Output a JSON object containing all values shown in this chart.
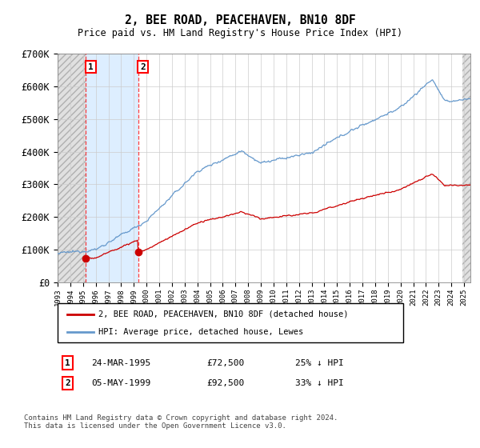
{
  "title": "2, BEE ROAD, PEACEHAVEN, BN10 8DF",
  "subtitle": "Price paid vs. HM Land Registry's House Price Index (HPI)",
  "ylim": [
    0,
    700000
  ],
  "yticks": [
    0,
    100000,
    200000,
    300000,
    400000,
    500000,
    600000,
    700000
  ],
  "ytick_labels": [
    "£0",
    "£100K",
    "£200K",
    "£300K",
    "£400K",
    "£500K",
    "£600K",
    "£700K"
  ],
  "sale1": {
    "date_x": 1995.23,
    "price": 72500,
    "label": "1",
    "date_str": "24-MAR-1995",
    "pct": "25% ↓ HPI"
  },
  "sale2": {
    "date_x": 1999.34,
    "price": 92500,
    "label": "2",
    "date_str": "05-MAY-1999",
    "pct": "33% ↓ HPI"
  },
  "line_red_color": "#cc0000",
  "line_blue_color": "#6699cc",
  "highlight_color": "#ddeeff",
  "background_color": "#ffffff",
  "grid_color": "#cccccc",
  "legend_label_red": "2, BEE ROAD, PEACEHAVEN, BN10 8DF (detached house)",
  "legend_label_blue": "HPI: Average price, detached house, Lewes",
  "footnote": "Contains HM Land Registry data © Crown copyright and database right 2024.\nThis data is licensed under the Open Government Licence v3.0.",
  "xmin": 1993.0,
  "xmax": 2025.5
}
